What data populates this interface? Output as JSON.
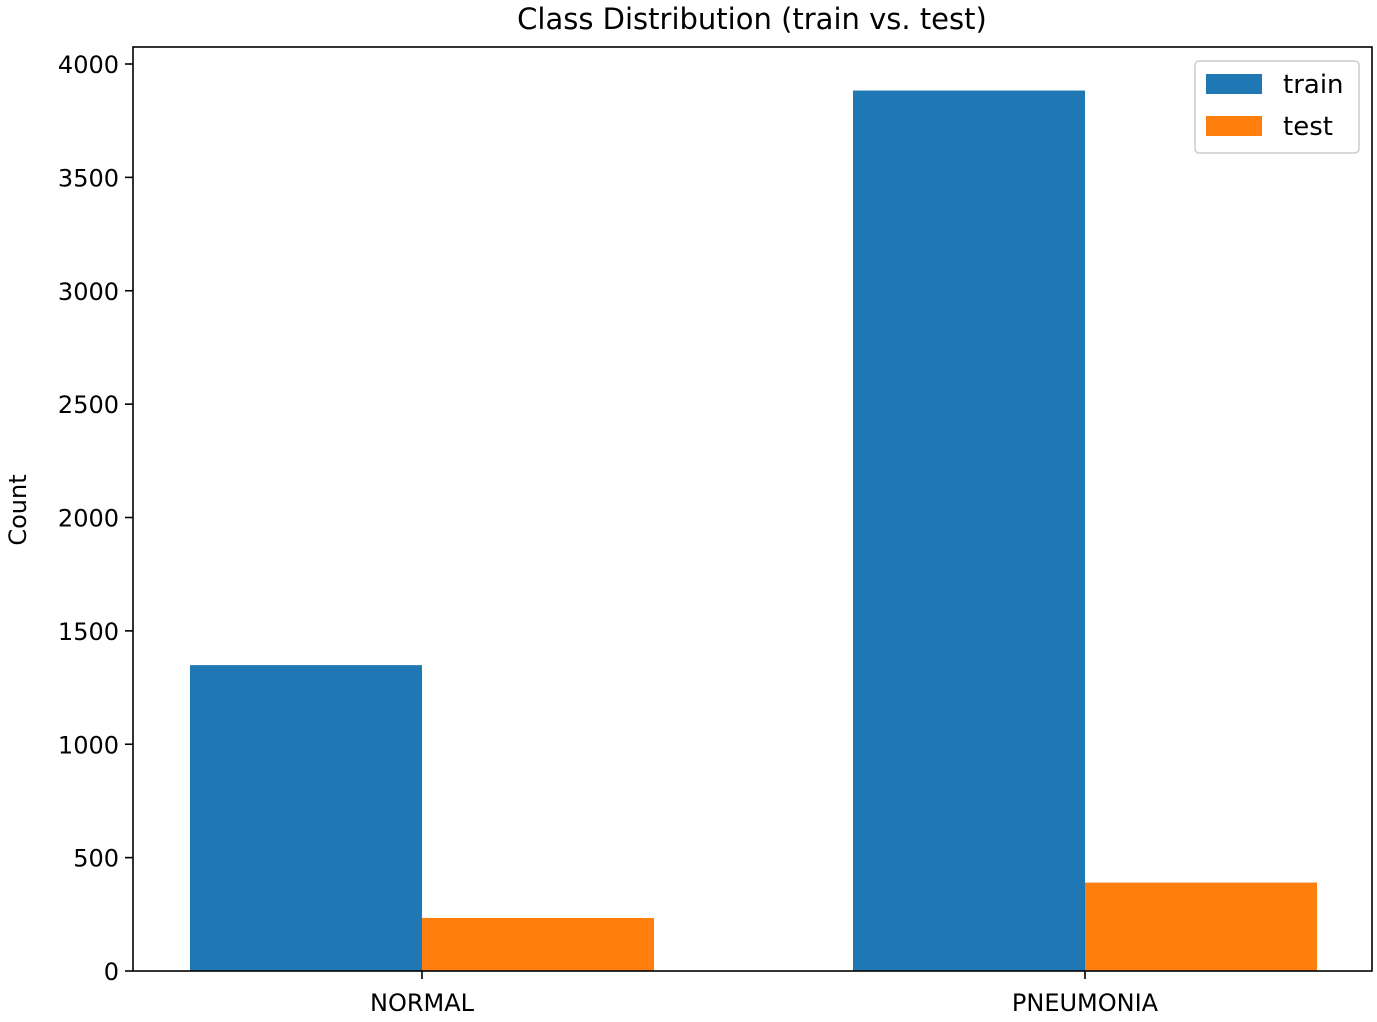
{
  "chart_data": {
    "type": "bar",
    "title": "Class Distribution (train vs. test)",
    "xlabel": "",
    "ylabel": "Count",
    "categories": [
      "NORMAL",
      "PNEUMONIA"
    ],
    "series": [
      {
        "name": "train",
        "values": [
          1349,
          3883
        ],
        "color": "#1f77b4"
      },
      {
        "name": "test",
        "values": [
          234,
          390
        ],
        "color": "#ff7f0e"
      }
    ],
    "ylim": [
      0,
      4075
    ],
    "yticks": [
      0,
      500,
      1000,
      1500,
      2000,
      2500,
      3000,
      3500,
      4000
    ],
    "grid": false,
    "legend_position": "top-right"
  }
}
